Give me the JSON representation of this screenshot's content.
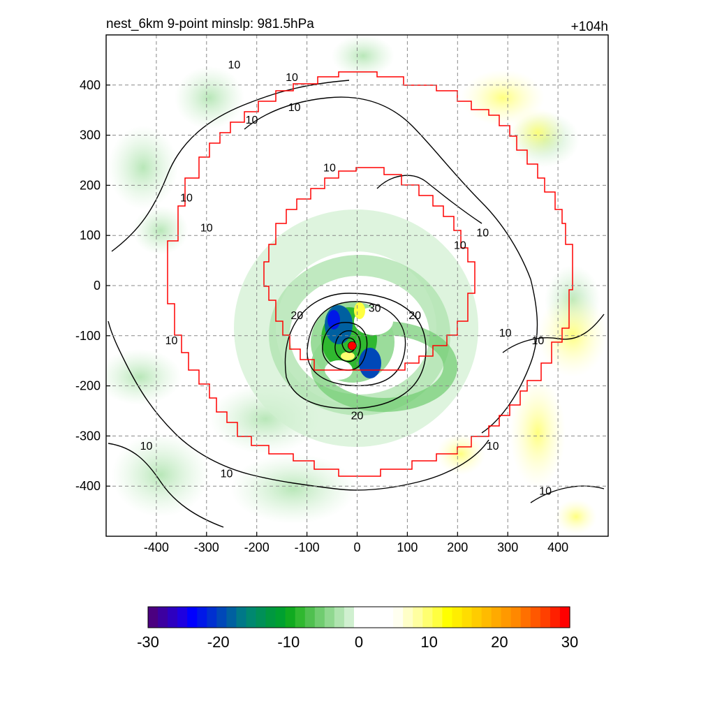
{
  "chart_data": {
    "type": "heatmap",
    "title_left": "nest_6km  9-point minslp: 981.5hPa",
    "title_right": "+104h",
    "xlabel": "",
    "ylabel": "",
    "xlim": [
      -500,
      500
    ],
    "ylim": [
      -500,
      500
    ],
    "x_ticks": [
      -400,
      -300,
      -200,
      -100,
      0,
      100,
      200,
      300,
      400
    ],
    "y_ticks": [
      400,
      300,
      200,
      100,
      0,
      -100,
      -200,
      -300,
      -400
    ],
    "grid": true,
    "center_marker": {
      "x": -10,
      "y": -120,
      "color": "#ff0000"
    },
    "contour_labels": [
      {
        "text": "10",
        "x": -245,
        "y": 440
      },
      {
        "text": "10",
        "x": -130,
        "y": 415
      },
      {
        "text": "10",
        "x": -125,
        "y": 355
      },
      {
        "text": "10",
        "x": -210,
        "y": 330
      },
      {
        "text": "10",
        "x": -340,
        "y": 175
      },
      {
        "text": "10",
        "x": -300,
        "y": 115
      },
      {
        "text": "10",
        "x": -55,
        "y": 235
      },
      {
        "text": "10",
        "x": 250,
        "y": 105
      },
      {
        "text": "10",
        "x": 205,
        "y": 80
      },
      {
        "text": "10",
        "x": 295,
        "y": -95
      },
      {
        "text": "10",
        "x": 360,
        "y": -110
      },
      {
        "text": "10",
        "x": -370,
        "y": -110
      },
      {
        "text": "10",
        "x": -420,
        "y": -320
      },
      {
        "text": "10",
        "x": -260,
        "y": -375
      },
      {
        "text": "10",
        "x": 270,
        "y": -320
      },
      {
        "text": "10",
        "x": 375,
        "y": -410
      },
      {
        "text": "20",
        "x": -120,
        "y": -60
      },
      {
        "text": "30",
        "x": 35,
        "y": -45
      },
      {
        "text": "20",
        "x": 115,
        "y": -60
      },
      {
        "text": "20",
        "x": 0,
        "y": -260
      }
    ],
    "colorbar": {
      "ticks": [
        -30,
        -20,
        -10,
        0,
        10,
        20,
        30
      ],
      "colors": [
        "#4b0080",
        "#3c00a0",
        "#2d00c0",
        "#1e00e0",
        "#0000ff",
        "#0018e8",
        "#0030d0",
        "#0048b8",
        "#0060a0",
        "#007888",
        "#008870",
        "#009058",
        "#009840",
        "#00a030",
        "#10aa20",
        "#30b830",
        "#50c050",
        "#70cc70",
        "#90d890",
        "#b0e4b0",
        "#d0f0d0",
        "#ffffff",
        "#ffffff",
        "#ffffff",
        "#ffffff",
        "#fffff0",
        "#ffffc8",
        "#ffffa0",
        "#ffff70",
        "#ffff40",
        "#ffff00",
        "#ffee00",
        "#ffdd00",
        "#ffcc00",
        "#ffbb00",
        "#ffaa00",
        "#ff9900",
        "#ff8800",
        "#ff7000",
        "#ff5800",
        "#ff4000",
        "#ff2000",
        "#ff0000"
      ]
    }
  }
}
